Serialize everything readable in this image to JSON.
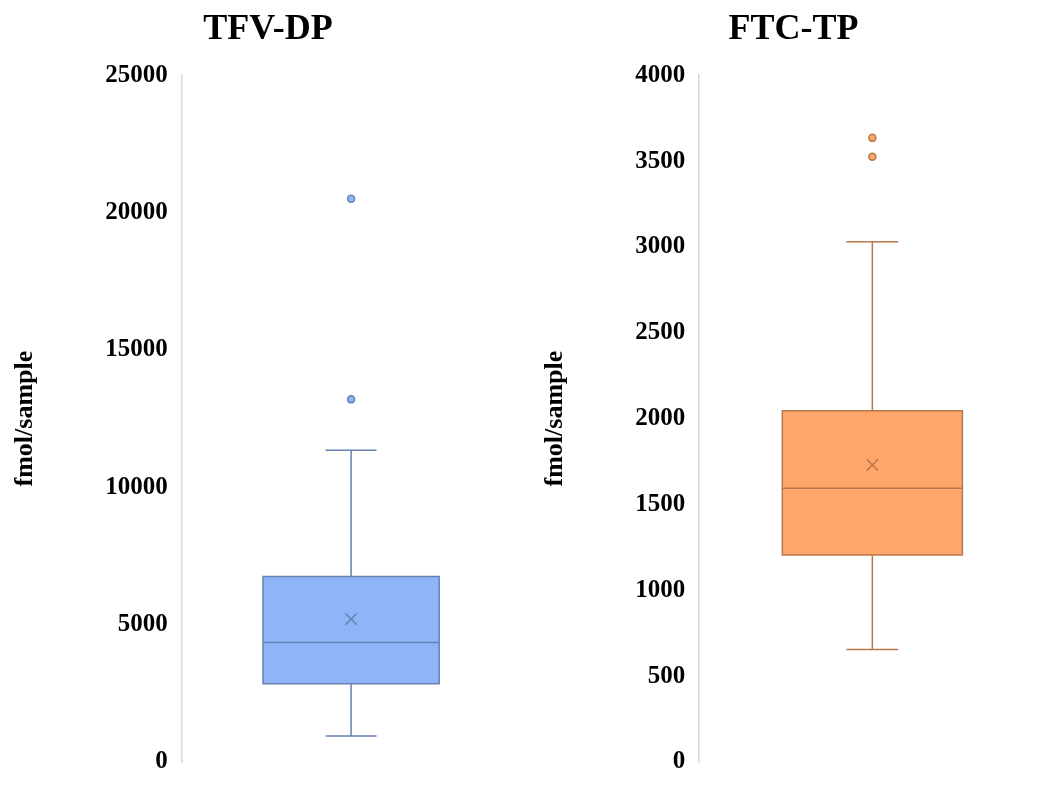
{
  "chart_data": [
    {
      "type": "box",
      "title": "TFV-DP",
      "ylabel": "fmol/sample",
      "categories": [
        null
      ],
      "ylim": [
        0,
        25000
      ],
      "yticks": [
        0,
        5000,
        10000,
        15000,
        20000,
        25000
      ],
      "grid": false,
      "legend": false,
      "marker": "circle",
      "series": [
        {
          "color": "#8fb4f7",
          "boxes": [
            {
              "low": 950,
              "q1": 2850,
              "median": 4350,
              "q3": 6750,
              "high": 11350,
              "mean": 5200,
              "outliers": [
                13200,
                20500
              ]
            }
          ]
        }
      ]
    },
    {
      "type": "box",
      "title": "FTC-TP",
      "ylabel": "fmol/sample",
      "categories": [
        null
      ],
      "ylim": [
        0,
        4000
      ],
      "yticks": [
        0,
        500,
        1000,
        1500,
        2000,
        2500,
        3000,
        3500,
        4000
      ],
      "grid": false,
      "legend": false,
      "marker": "circle",
      "series": [
        {
          "color": "#ffa66b",
          "boxes": [
            {
              "low": 655,
              "q1": 1205,
              "median": 1595,
              "q3": 2045,
              "high": 3030,
              "mean": 1730,
              "outliers": [
                3525,
                3635
              ]
            }
          ]
        }
      ]
    }
  ]
}
